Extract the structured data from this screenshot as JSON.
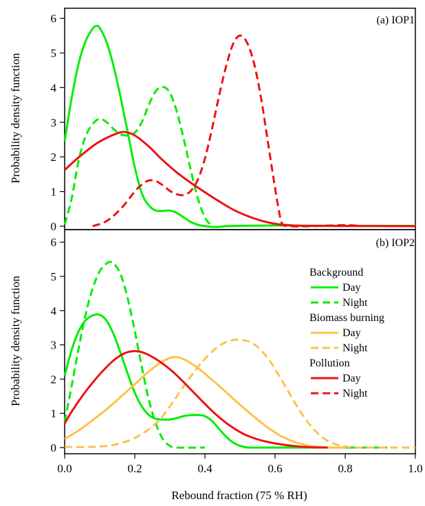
{
  "chart_data": {
    "type": "line",
    "xlabel": "Rebound fraction (75 % RH)",
    "ylabel": "Probability density function",
    "xlim": [
      0,
      1.0
    ],
    "ylim": [
      0,
      6.4
    ],
    "xticks": [
      "0.0",
      "0.2",
      "0.4",
      "0.6",
      "0.8",
      "1.0"
    ],
    "yticks": [
      "0",
      "1",
      "2",
      "3",
      "4",
      "5",
      "6"
    ],
    "colors": {
      "background": "#00ee00",
      "biomass": "#ffc04c",
      "pollution": "#ee1111"
    },
    "legend": {
      "placement": "right",
      "groups": [
        {
          "title": "Background",
          "color": "#00ee00",
          "entries": [
            {
              "label": "Day",
              "style": "solid"
            },
            {
              "label": "Night",
              "style": "dashed"
            }
          ]
        },
        {
          "title": "Biomass burning",
          "color": "#ffc04c",
          "entries": [
            {
              "label": "Day",
              "style": "solid"
            },
            {
              "label": "Night",
              "style": "dashed"
            }
          ]
        },
        {
          "title": "Pollution",
          "color": "#ee1111",
          "entries": [
            {
              "label": "Day",
              "style": "solid"
            },
            {
              "label": "Night",
              "style": "dashed"
            }
          ]
        }
      ]
    },
    "panels": [
      {
        "label": "(a) IOP1",
        "series": [
          {
            "group": "background",
            "style": "solid",
            "color": "#00ee00",
            "points": [
              [
                0,
                2.45
              ],
              [
                0.02,
                3.7
              ],
              [
                0.04,
                4.7
              ],
              [
                0.06,
                5.35
              ],
              [
                0.08,
                5.7
              ],
              [
                0.09,
                5.78
              ],
              [
                0.1,
                5.72
              ],
              [
                0.12,
                5.3
              ],
              [
                0.14,
                4.6
              ],
              [
                0.16,
                3.7
              ],
              [
                0.18,
                2.7
              ],
              [
                0.2,
                1.7
              ],
              [
                0.22,
                0.95
              ],
              [
                0.24,
                0.6
              ],
              [
                0.26,
                0.45
              ],
              [
                0.28,
                0.44
              ],
              [
                0.3,
                0.45
              ],
              [
                0.32,
                0.38
              ],
              [
                0.34,
                0.25
              ],
              [
                0.36,
                0.12
              ],
              [
                0.38,
                0.04
              ],
              [
                0.4,
                0.0
              ],
              [
                0.42,
                -0.02
              ],
              [
                0.44,
                -0.02
              ],
              [
                0.46,
                0.0
              ],
              [
                0.5,
                0.01
              ],
              [
                0.6,
                0.02
              ],
              [
                0.8,
                0.01
              ],
              [
                1.0,
                0.01
              ]
            ]
          },
          {
            "group": "background",
            "style": "dashed",
            "color": "#00ee00",
            "points": [
              [
                0,
                0.05
              ],
              [
                0.02,
                0.8
              ],
              [
                0.04,
                1.9
              ],
              [
                0.06,
                2.6
              ],
              [
                0.08,
                2.95
              ],
              [
                0.1,
                3.1
              ],
              [
                0.12,
                3.0
              ],
              [
                0.14,
                2.8
              ],
              [
                0.16,
                2.65
              ],
              [
                0.18,
                2.62
              ],
              [
                0.2,
                2.7
              ],
              [
                0.22,
                3.0
              ],
              [
                0.24,
                3.5
              ],
              [
                0.26,
                3.9
              ],
              [
                0.28,
                4.02
              ],
              [
                0.3,
                3.85
              ],
              [
                0.32,
                3.3
              ],
              [
                0.34,
                2.5
              ],
              [
                0.36,
                1.6
              ],
              [
                0.38,
                0.8
              ],
              [
                0.4,
                0.25
              ],
              [
                0.42,
                0.0
              ]
            ]
          },
          {
            "group": "pollution",
            "style": "solid",
            "color": "#ee1111",
            "points": [
              [
                0,
                1.62
              ],
              [
                0.03,
                1.9
              ],
              [
                0.06,
                2.15
              ],
              [
                0.09,
                2.38
              ],
              [
                0.12,
                2.55
              ],
              [
                0.15,
                2.68
              ],
              [
                0.17,
                2.72
              ],
              [
                0.2,
                2.62
              ],
              [
                0.24,
                2.3
              ],
              [
                0.28,
                1.9
              ],
              [
                0.32,
                1.55
              ],
              [
                0.36,
                1.25
              ],
              [
                0.4,
                0.98
              ],
              [
                0.44,
                0.72
              ],
              [
                0.48,
                0.48
              ],
              [
                0.52,
                0.3
              ],
              [
                0.56,
                0.16
              ],
              [
                0.6,
                0.07
              ],
              [
                0.64,
                0.03
              ],
              [
                0.7,
                0.01
              ],
              [
                1.0,
                0.0
              ]
            ]
          },
          {
            "group": "pollution",
            "style": "dashed",
            "color": "#ee1111",
            "points": [
              [
                0.08,
                0.0
              ],
              [
                0.12,
                0.15
              ],
              [
                0.16,
                0.5
              ],
              [
                0.2,
                1.0
              ],
              [
                0.22,
                1.2
              ],
              [
                0.24,
                1.32
              ],
              [
                0.26,
                1.3
              ],
              [
                0.28,
                1.18
              ],
              [
                0.3,
                1.02
              ],
              [
                0.32,
                0.92
              ],
              [
                0.34,
                0.9
              ],
              [
                0.36,
                1.02
              ],
              [
                0.38,
                1.35
              ],
              [
                0.4,
                1.95
              ],
              [
                0.42,
                2.8
              ],
              [
                0.44,
                3.75
              ],
              [
                0.46,
                4.6
              ],
              [
                0.48,
                5.25
              ],
              [
                0.5,
                5.5
              ],
              [
                0.52,
                5.3
              ],
              [
                0.54,
                4.7
              ],
              [
                0.56,
                3.7
              ],
              [
                0.58,
                2.4
              ],
              [
                0.6,
                1.1
              ],
              [
                0.61,
                0.5
              ],
              [
                0.62,
                0.08
              ],
              [
                0.64,
                0.0
              ],
              [
                0.7,
                0.0
              ],
              [
                0.8,
                0.03
              ],
              [
                0.85,
                0.0
              ]
            ]
          }
        ]
      },
      {
        "label": "(b) IOP2",
        "series": [
          {
            "group": "background",
            "style": "solid",
            "color": "#00ee00",
            "points": [
              [
                0,
                2.1
              ],
              [
                0.02,
                2.85
              ],
              [
                0.04,
                3.4
              ],
              [
                0.06,
                3.72
              ],
              [
                0.08,
                3.86
              ],
              [
                0.1,
                3.88
              ],
              [
                0.12,
                3.7
              ],
              [
                0.14,
                3.3
              ],
              [
                0.16,
                2.75
              ],
              [
                0.18,
                2.15
              ],
              [
                0.2,
                1.6
              ],
              [
                0.22,
                1.2
              ],
              [
                0.24,
                0.95
              ],
              [
                0.26,
                0.84
              ],
              [
                0.28,
                0.82
              ],
              [
                0.3,
                0.82
              ],
              [
                0.32,
                0.86
              ],
              [
                0.34,
                0.92
              ],
              [
                0.36,
                0.95
              ],
              [
                0.38,
                0.95
              ],
              [
                0.4,
                0.92
              ],
              [
                0.42,
                0.78
              ],
              [
                0.44,
                0.55
              ],
              [
                0.46,
                0.32
              ],
              [
                0.48,
                0.15
              ],
              [
                0.5,
                0.05
              ],
              [
                0.52,
                0.01
              ],
              [
                0.55,
                0.0
              ],
              [
                0.92,
                0.0
              ]
            ]
          },
          {
            "group": "background",
            "style": "dashed",
            "color": "#00ee00",
            "points": [
              [
                0,
                0.75
              ],
              [
                0.02,
                1.8
              ],
              [
                0.04,
                2.9
              ],
              [
                0.06,
                3.9
              ],
              [
                0.08,
                4.65
              ],
              [
                0.1,
                5.15
              ],
              [
                0.12,
                5.38
              ],
              [
                0.13,
                5.42
              ],
              [
                0.14,
                5.38
              ],
              [
                0.16,
                5.05
              ],
              [
                0.18,
                4.35
              ],
              [
                0.2,
                3.4
              ],
              [
                0.22,
                2.35
              ],
              [
                0.24,
                1.4
              ],
              [
                0.26,
                0.7
              ],
              [
                0.28,
                0.25
              ],
              [
                0.3,
                0.05
              ],
              [
                0.32,
                0.0
              ],
              [
                0.4,
                0.0
              ]
            ]
          },
          {
            "group": "biomass",
            "style": "solid",
            "color": "#ffc04c",
            "points": [
              [
                0,
                0.25
              ],
              [
                0.04,
                0.5
              ],
              [
                0.08,
                0.8
              ],
              [
                0.12,
                1.12
              ],
              [
                0.16,
                1.48
              ],
              [
                0.2,
                1.85
              ],
              [
                0.24,
                2.22
              ],
              [
                0.28,
                2.52
              ],
              [
                0.31,
                2.64
              ],
              [
                0.34,
                2.58
              ],
              [
                0.38,
                2.32
              ],
              [
                0.42,
                1.98
              ],
              [
                0.46,
                1.62
              ],
              [
                0.5,
                1.25
              ],
              [
                0.54,
                0.9
              ],
              [
                0.58,
                0.58
              ],
              [
                0.62,
                0.32
              ],
              [
                0.66,
                0.15
              ],
              [
                0.7,
                0.05
              ],
              [
                0.74,
                0.01
              ],
              [
                0.8,
                0.0
              ]
            ]
          },
          {
            "group": "biomass",
            "style": "dashed",
            "color": "#ffc04c",
            "points": [
              [
                0,
                0.02
              ],
              [
                0.08,
                0.02
              ],
              [
                0.14,
                0.08
              ],
              [
                0.2,
                0.28
              ],
              [
                0.26,
                0.7
              ],
              [
                0.3,
                1.2
              ],
              [
                0.34,
                1.8
              ],
              [
                0.38,
                2.35
              ],
              [
                0.42,
                2.8
              ],
              [
                0.46,
                3.08
              ],
              [
                0.5,
                3.15
              ],
              [
                0.54,
                3.02
              ],
              [
                0.58,
                2.6
              ],
              [
                0.62,
                1.95
              ],
              [
                0.66,
                1.25
              ],
              [
                0.7,
                0.65
              ],
              [
                0.74,
                0.26
              ],
              [
                0.78,
                0.07
              ],
              [
                0.82,
                0.01
              ],
              [
                0.86,
                0.0
              ],
              [
                1.0,
                0.0
              ]
            ]
          },
          {
            "group": "pollution",
            "style": "solid",
            "color": "#ee1111",
            "points": [
              [
                0,
                0.7
              ],
              [
                0.02,
                1.05
              ],
              [
                0.05,
                1.5
              ],
              [
                0.08,
                1.9
              ],
              [
                0.11,
                2.25
              ],
              [
                0.14,
                2.55
              ],
              [
                0.17,
                2.75
              ],
              [
                0.2,
                2.82
              ],
              [
                0.23,
                2.75
              ],
              [
                0.27,
                2.52
              ],
              [
                0.31,
                2.2
              ],
              [
                0.35,
                1.8
              ],
              [
                0.39,
                1.38
              ],
              [
                0.43,
                0.98
              ],
              [
                0.47,
                0.65
              ],
              [
                0.51,
                0.4
              ],
              [
                0.55,
                0.24
              ],
              [
                0.6,
                0.12
              ],
              [
                0.65,
                0.05
              ],
              [
                0.7,
                0.01
              ],
              [
                0.75,
                0.0
              ]
            ]
          }
        ]
      }
    ]
  }
}
